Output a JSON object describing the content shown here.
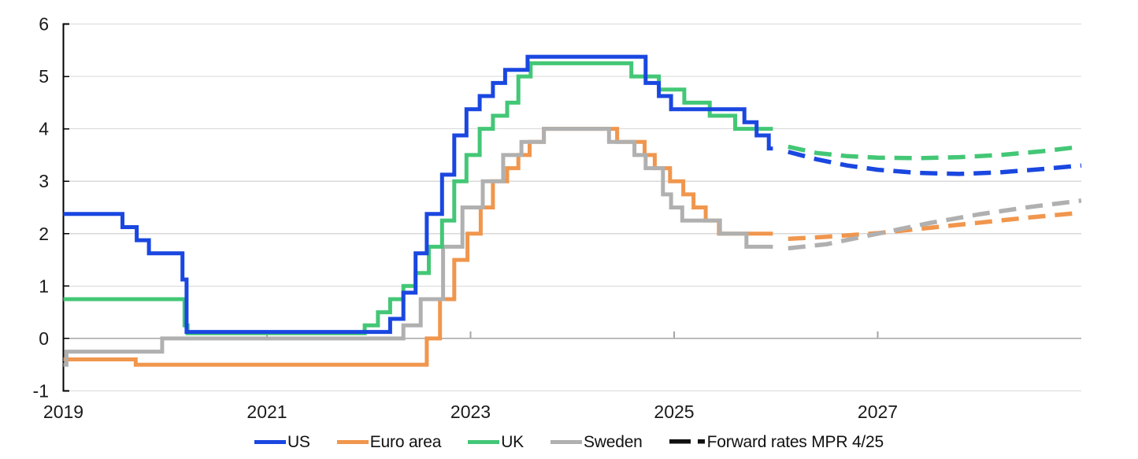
{
  "legend": {
    "items": [
      {
        "label": "US",
        "color": "#1a47e0",
        "style": "solid"
      },
      {
        "label": "Euro area",
        "color": "#f0964d",
        "style": "solid"
      },
      {
        "label": "UK",
        "color": "#43c776",
        "style": "solid"
      },
      {
        "label": "Sweden",
        "color": "#b0b0b0",
        "style": "solid"
      },
      {
        "label": "Forward rates MPR 4/25",
        "color": "#111111",
        "style": "dashed"
      }
    ]
  },
  "axes": {
    "x_tick_labels": [
      "2019",
      "2021",
      "2023",
      "2025",
      "2027"
    ],
    "y_tick_labels": [
      "-1",
      "0",
      "1",
      "2",
      "3",
      "4",
      "5",
      "6"
    ]
  },
  "colors": {
    "grid": "#d9d9d9",
    "zero_line": "#a6a6a6",
    "axis": "#000000",
    "text": "#1a1a1a",
    "us": "#1a47e0",
    "euro_area": "#f0964d",
    "uk": "#43c776",
    "sweden": "#b0b0b0",
    "forward_legend": "#111111"
  },
  "chart_data": {
    "type": "line",
    "title": "",
    "xlabel": "",
    "ylabel": "",
    "x_range": [
      2019,
      2029
    ],
    "y_range": [
      -1,
      6
    ],
    "x_ticks": [
      2019,
      2021,
      2023,
      2025,
      2027
    ],
    "y_ticks": [
      -1,
      0,
      1,
      2,
      3,
      4,
      5,
      6
    ],
    "grid": "horizontal",
    "legend_position": "bottom",
    "series": [
      {
        "name": "Euro area",
        "color": "#f0964d",
        "style": "step",
        "points": [
          [
            2019.0,
            -0.4
          ],
          [
            2019.71,
            -0.5
          ],
          [
            2022.57,
            0.0
          ],
          [
            2022.7,
            0.75
          ],
          [
            2022.84,
            1.5
          ],
          [
            2022.97,
            2.0
          ],
          [
            2023.1,
            2.5
          ],
          [
            2023.22,
            3.0
          ],
          [
            2023.36,
            3.25
          ],
          [
            2023.47,
            3.5
          ],
          [
            2023.58,
            3.75
          ],
          [
            2023.72,
            4.0
          ],
          [
            2024.44,
            3.75
          ],
          [
            2024.71,
            3.5
          ],
          [
            2024.81,
            3.25
          ],
          [
            2024.96,
            3.0
          ],
          [
            2025.09,
            2.75
          ],
          [
            2025.19,
            2.5
          ],
          [
            2025.31,
            2.25
          ],
          [
            2025.44,
            2.0
          ],
          [
            2025.97,
            2.0
          ]
        ]
      },
      {
        "name": "Sweden",
        "color": "#b0b0b0",
        "style": "step",
        "points": [
          [
            2019.0,
            -0.5
          ],
          [
            2019.03,
            -0.25
          ],
          [
            2019.97,
            0.0
          ],
          [
            2022.34,
            0.25
          ],
          [
            2022.51,
            0.75
          ],
          [
            2022.73,
            1.75
          ],
          [
            2022.92,
            2.5
          ],
          [
            2023.12,
            3.0
          ],
          [
            2023.32,
            3.5
          ],
          [
            2023.5,
            3.75
          ],
          [
            2023.72,
            4.0
          ],
          [
            2024.36,
            3.75
          ],
          [
            2024.61,
            3.5
          ],
          [
            2024.72,
            3.25
          ],
          [
            2024.89,
            2.75
          ],
          [
            2024.97,
            2.5
          ],
          [
            2025.08,
            2.25
          ],
          [
            2025.45,
            2.0
          ],
          [
            2025.71,
            1.75
          ],
          [
            2025.97,
            1.75
          ]
        ]
      },
      {
        "name": "UK",
        "color": "#43c776",
        "style": "step",
        "points": [
          [
            2019.0,
            0.75
          ],
          [
            2020.19,
            0.25
          ],
          [
            2020.22,
            0.1
          ],
          [
            2021.96,
            0.25
          ],
          [
            2022.09,
            0.5
          ],
          [
            2022.21,
            0.75
          ],
          [
            2022.34,
            1.0
          ],
          [
            2022.46,
            1.25
          ],
          [
            2022.59,
            1.75
          ],
          [
            2022.72,
            2.25
          ],
          [
            2022.84,
            3.0
          ],
          [
            2022.96,
            3.5
          ],
          [
            2023.09,
            4.0
          ],
          [
            2023.22,
            4.25
          ],
          [
            2023.36,
            4.5
          ],
          [
            2023.47,
            5.0
          ],
          [
            2023.59,
            5.25
          ],
          [
            2024.58,
            5.0
          ],
          [
            2024.85,
            4.75
          ],
          [
            2025.1,
            4.5
          ],
          [
            2025.35,
            4.25
          ],
          [
            2025.6,
            4.0
          ],
          [
            2025.97,
            4.0
          ]
        ]
      },
      {
        "name": "US",
        "color": "#1a47e0",
        "style": "step",
        "points": [
          [
            2019.0,
            2.375
          ],
          [
            2019.58,
            2.125
          ],
          [
            2019.72,
            1.875
          ],
          [
            2019.84,
            1.625
          ],
          [
            2020.17,
            1.125
          ],
          [
            2020.21,
            0.125
          ],
          [
            2022.21,
            0.375
          ],
          [
            2022.34,
            0.875
          ],
          [
            2022.46,
            1.625
          ],
          [
            2022.57,
            2.375
          ],
          [
            2022.72,
            3.125
          ],
          [
            2022.84,
            3.875
          ],
          [
            2022.96,
            4.375
          ],
          [
            2023.09,
            4.625
          ],
          [
            2023.22,
            4.875
          ],
          [
            2023.34,
            5.125
          ],
          [
            2023.56,
            5.375
          ],
          [
            2024.72,
            4.875
          ],
          [
            2024.85,
            4.625
          ],
          [
            2024.97,
            4.375
          ],
          [
            2025.69,
            4.125
          ],
          [
            2025.81,
            3.875
          ],
          [
            2025.93,
            3.625
          ],
          [
            2025.97,
            3.625
          ]
        ]
      },
      {
        "name": "Euro area forward rates MPR 4/25",
        "color": "#f0964d",
        "style": "dashed",
        "points": [
          [
            2026.12,
            1.9
          ],
          [
            2026.5,
            1.94
          ],
          [
            2027.0,
            2.01
          ],
          [
            2027.5,
            2.11
          ],
          [
            2028.0,
            2.21
          ],
          [
            2028.5,
            2.31
          ],
          [
            2029.0,
            2.4
          ]
        ]
      },
      {
        "name": "Sweden forward rates MPR 4/25",
        "color": "#b0b0b0",
        "style": "dashed",
        "points": [
          [
            2026.12,
            1.72
          ],
          [
            2026.5,
            1.8
          ],
          [
            2027.0,
            2.0
          ],
          [
            2027.5,
            2.2
          ],
          [
            2028.0,
            2.37
          ],
          [
            2028.5,
            2.51
          ],
          [
            2029.0,
            2.63
          ]
        ]
      },
      {
        "name": "US forward rates MPR 4/25",
        "color": "#1a47e0",
        "style": "dashed",
        "points": [
          [
            2026.12,
            3.56
          ],
          [
            2026.4,
            3.42
          ],
          [
            2026.7,
            3.3
          ],
          [
            2027.0,
            3.22
          ],
          [
            2027.4,
            3.16
          ],
          [
            2027.8,
            3.14
          ],
          [
            2028.2,
            3.17
          ],
          [
            2028.6,
            3.23
          ],
          [
            2029.0,
            3.3
          ]
        ]
      },
      {
        "name": "UK forward rates MPR 4/25",
        "color": "#43c776",
        "style": "dashed",
        "points": [
          [
            2026.12,
            3.66
          ],
          [
            2026.4,
            3.54
          ],
          [
            2026.7,
            3.48
          ],
          [
            2027.0,
            3.45
          ],
          [
            2027.4,
            3.44
          ],
          [
            2027.8,
            3.46
          ],
          [
            2028.2,
            3.5
          ],
          [
            2028.6,
            3.57
          ],
          [
            2029.0,
            3.66
          ]
        ]
      }
    ]
  }
}
